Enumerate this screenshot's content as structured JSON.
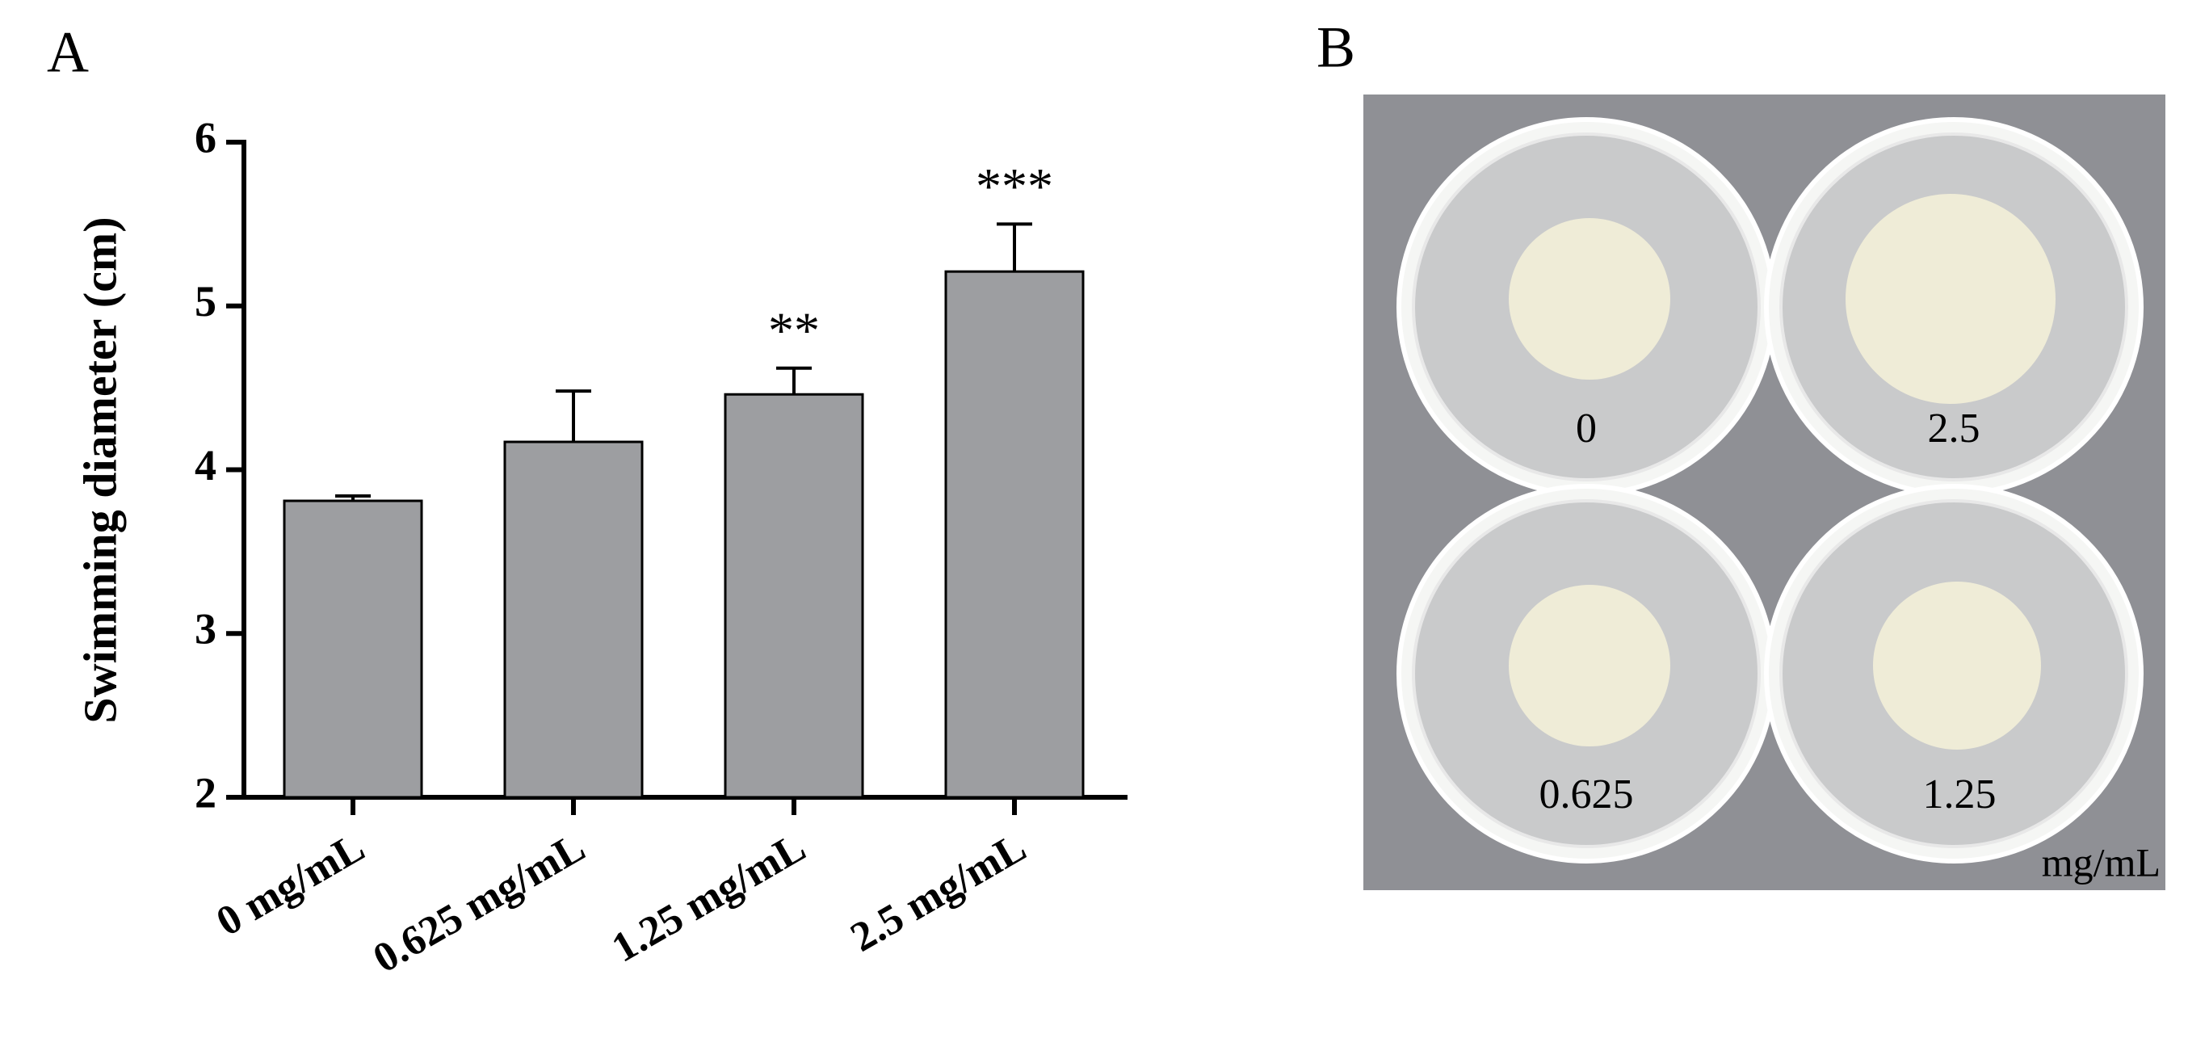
{
  "chart_data": {
    "type": "bar",
    "panel_label": "A",
    "y_label": "Swimming diameter (cm)",
    "categories": [
      "0 mg/mL",
      "0.625 mg/mL",
      "1.25 mg/mL",
      "2.5 mg/mL"
    ],
    "values": [
      3.81,
      4.17,
      4.46,
      5.21
    ],
    "errors": [
      0.03,
      0.31,
      0.16,
      0.29
    ],
    "annotations": [
      null,
      null,
      "**",
      "***"
    ],
    "color": "#9d9ea1",
    "ylim": [
      2,
      6
    ],
    "yticks": [
      2,
      3,
      4,
      5,
      6
    ],
    "grid": false
  },
  "panel_b": {
    "label": "B",
    "plates": [
      "0",
      "2.5",
      "0.625",
      "1.25"
    ],
    "unit": "mg/mL"
  }
}
